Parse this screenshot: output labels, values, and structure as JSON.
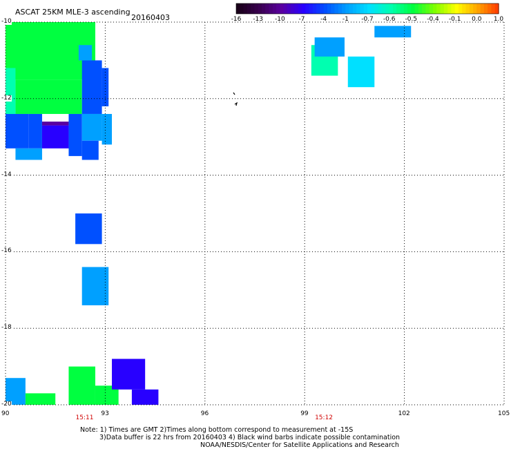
{
  "header": {
    "title": "ASCAT 25KM MLE-3 ascending",
    "date": "20160403"
  },
  "colorbar": {
    "labels": [
      "-16",
      "-13",
      "-10",
      "-7",
      "-4",
      "-1",
      "-0.7",
      "-0.6",
      "-0.5",
      "-0.4",
      "-0.1",
      "0.0",
      "1.0"
    ],
    "colors": [
      "#1a001a",
      "#3a0050",
      "#5a00a0",
      "#2800ff",
      "#0050ff",
      "#00a0ff",
      "#00e0ff",
      "#00ffb0",
      "#00ff40",
      "#80ff00",
      "#ffff00",
      "#ffa000",
      "#ff3000"
    ]
  },
  "axes": {
    "x_ticks": [
      "90",
      "93",
      "96",
      "99",
      "102",
      "105"
    ],
    "y_ticks": [
      "-10",
      "-12",
      "-14",
      "-16",
      "-18",
      "-20"
    ],
    "lon_range": [
      90,
      105
    ],
    "lat_range": [
      -20,
      -10
    ]
  },
  "pass_times": [
    {
      "label": "15:11",
      "lon": 92.4
    },
    {
      "label": "15:12",
      "lon": 99.6
    }
  ],
  "notes": {
    "line1": "Note: 1) Times are GMT 2)Times along bottom correspond to measurement at -15S",
    "line2": "3)Data buffer is 22 hrs from 20160403 4) Black wind barbs indicate possible contamination",
    "line3": "NOAA/NESDIS/Center for Satellite Applications and Research"
  },
  "swath_cells": [
    {
      "lon0": 90.0,
      "lon1": 92.7,
      "lat0": -11.5,
      "lat1": -10.0,
      "value": "-0.5"
    },
    {
      "lon0": 90.3,
      "lon1": 92.3,
      "lat0": -12.4,
      "lat1": -11.5,
      "value": "-0.5"
    },
    {
      "lon0": 90.0,
      "lon1": 90.3,
      "lat0": -12.4,
      "lat1": -11.2,
      "value": "-0.6"
    },
    {
      "lon0": 92.3,
      "lon1": 92.9,
      "lat0": -12.4,
      "lat1": -11.0,
      "value": "-4"
    },
    {
      "lon0": 92.2,
      "lon1": 92.6,
      "lat0": -11.0,
      "lat1": -10.6,
      "value": "-1"
    },
    {
      "lon0": 92.9,
      "lon1": 93.1,
      "lat0": -12.2,
      "lat1": -11.2,
      "value": "-4"
    },
    {
      "lon0": 90.0,
      "lon1": 90.7,
      "lat0": -13.3,
      "lat1": -12.4,
      "value": "-4"
    },
    {
      "lon0": 90.7,
      "lon1": 91.1,
      "lat0": -13.3,
      "lat1": -12.4,
      "value": "-4"
    },
    {
      "lon0": 91.1,
      "lon1": 91.9,
      "lat0": -13.3,
      "lat1": -12.7,
      "value": "-7"
    },
    {
      "lon0": 91.1,
      "lon1": 91.9,
      "lat0": -12.7,
      "lat1": -12.6,
      "value": "-10"
    },
    {
      "lon0": 91.9,
      "lon1": 92.3,
      "lat0": -13.5,
      "lat1": -12.4,
      "value": "-4"
    },
    {
      "lon0": 92.3,
      "lon1": 92.9,
      "lat0": -13.1,
      "lat1": -12.4,
      "value": "-1"
    },
    {
      "lon0": 92.9,
      "lon1": 93.2,
      "lat0": -13.2,
      "lat1": -12.4,
      "value": "-1"
    },
    {
      "lon0": 90.3,
      "lon1": 91.1,
      "lat0": -13.6,
      "lat1": -13.3,
      "value": "-1"
    },
    {
      "lon0": 92.3,
      "lon1": 92.8,
      "lat0": -13.6,
      "lat1": -13.1,
      "value": "-4"
    },
    {
      "lon0": 92.1,
      "lon1": 92.9,
      "lat0": -15.8,
      "lat1": -15.0,
      "value": "-4"
    },
    {
      "lon0": 92.3,
      "lon1": 93.1,
      "lat0": -17.4,
      "lat1": -16.4,
      "value": "-1"
    },
    {
      "lon0": 99.2,
      "lon1": 100.0,
      "lat0": -11.4,
      "lat1": -10.6,
      "value": "-0.6"
    },
    {
      "lon0": 99.3,
      "lon1": 100.2,
      "lat0": -10.9,
      "lat1": -10.4,
      "value": "-1"
    },
    {
      "lon0": 100.3,
      "lon1": 101.1,
      "lat0": -11.7,
      "lat1": -10.9,
      "value": "-0.7"
    },
    {
      "lon0": 101.1,
      "lon1": 102.2,
      "lat0": -10.4,
      "lat1": -10.1,
      "value": "-1"
    },
    {
      "lon0": 90.0,
      "lon1": 90.6,
      "lat0": -20.0,
      "lat1": -19.3,
      "value": "-1"
    },
    {
      "lon0": 90.6,
      "lon1": 91.5,
      "lat0": -20.0,
      "lat1": -19.7,
      "value": "-0.5"
    },
    {
      "lon0": 91.9,
      "lon1": 92.7,
      "lat0": -20.0,
      "lat1": -19.0,
      "value": "-0.5"
    },
    {
      "lon0": 92.7,
      "lon1": 93.4,
      "lat0": -20.0,
      "lat1": -19.5,
      "value": "-0.5"
    },
    {
      "lon0": 93.2,
      "lon1": 94.2,
      "lat0": -19.6,
      "lat1": -18.8,
      "value": "-7"
    },
    {
      "lon0": 93.8,
      "lon1": 94.6,
      "lat0": -20.0,
      "lat1": -19.6,
      "value": "-7"
    }
  ]
}
